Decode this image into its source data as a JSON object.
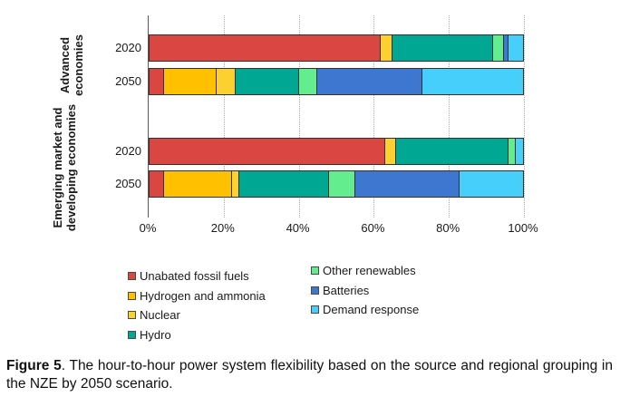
{
  "chart_data": {
    "type": "bar",
    "orientation": "horizontal",
    "stacked": true,
    "unit": "percent",
    "xlim": [
      0,
      100
    ],
    "x_ticks": [
      "0%",
      "20%",
      "40%",
      "60%",
      "80%",
      "100%"
    ],
    "grid": "vertical dotted gridlines every 20%",
    "legend_position": "bottom, two columns",
    "groups": [
      {
        "label": "Advanced economies",
        "bars": [
          {
            "year": "2020"
          },
          {
            "year": "2050"
          }
        ]
      },
      {
        "label": "Emerging market and developing economies",
        "bars": [
          {
            "year": "2020"
          },
          {
            "year": "2050"
          }
        ]
      }
    ],
    "bar_order": [
      "Advanced economies 2020",
      "Advanced economies 2050",
      "Emerging market and developing economies 2020",
      "Emerging market and developing economies 2050"
    ],
    "series": [
      {
        "name": "Unabated fossil fuels",
        "color": "#DA4742",
        "values": [
          62,
          4,
          63,
          4
        ]
      },
      {
        "name": "Hydrogen and ammonia",
        "color": "#FFC000",
        "values": [
          0,
          14,
          0,
          18
        ]
      },
      {
        "name": "Nuclear",
        "color": "#FDD032",
        "values": [
          3,
          5,
          3,
          2
        ]
      },
      {
        "name": "Hydro",
        "color": "#00A893",
        "values": [
          27,
          17,
          30,
          24
        ]
      },
      {
        "name": "Other renewables",
        "color": "#63ED8E",
        "values": [
          3,
          5,
          2,
          7
        ]
      },
      {
        "name": "Batteries",
        "color": "#3E77D0",
        "values": [
          1,
          28,
          0,
          28
        ]
      },
      {
        "name": "Demand response",
        "color": "#47CFFB",
        "values": [
          4,
          27,
          2,
          17
        ]
      }
    ]
  },
  "legend": {
    "columns": [
      [
        "Unabated fossil fuels",
        "Hydrogen and ammonia",
        "Nuclear",
        "Hydro"
      ],
      [
        "Other renewables",
        "Batteries",
        "Demand response"
      ]
    ]
  },
  "caption": {
    "label": "Figure 5",
    "text": ". The hour-to-hour power system flexibility based on the source and regional grouping in the NZE by 2050 scenario."
  }
}
